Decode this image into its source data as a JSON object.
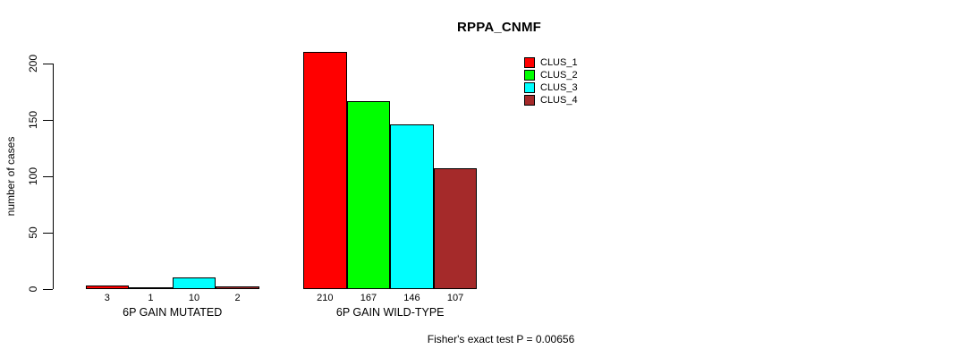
{
  "chart_data": {
    "type": "bar",
    "title": "RPPA_CNMF",
    "xlabel": "",
    "ylabel": "number of cases",
    "ylim": [
      0,
      210
    ],
    "yticks": [
      0,
      50,
      100,
      150,
      200
    ],
    "grid": false,
    "legend_position": "right-of-plot-top",
    "series": [
      {
        "name": "CLUS_1",
        "color": "#FF0000"
      },
      {
        "name": "CLUS_2",
        "color": "#00FF00"
      },
      {
        "name": "CLUS_3",
        "color": "#00FFFF"
      },
      {
        "name": "CLUS_4",
        "color": "#A52A2A"
      }
    ],
    "groups": [
      {
        "label": "6P GAIN MUTATED",
        "values": [
          3,
          1,
          10,
          2
        ]
      },
      {
        "label": "6P GAIN WILD-TYPE",
        "values": [
          210,
          167,
          146,
          107
        ]
      }
    ],
    "annotation": "Fisher's exact test P = 0.00656"
  }
}
